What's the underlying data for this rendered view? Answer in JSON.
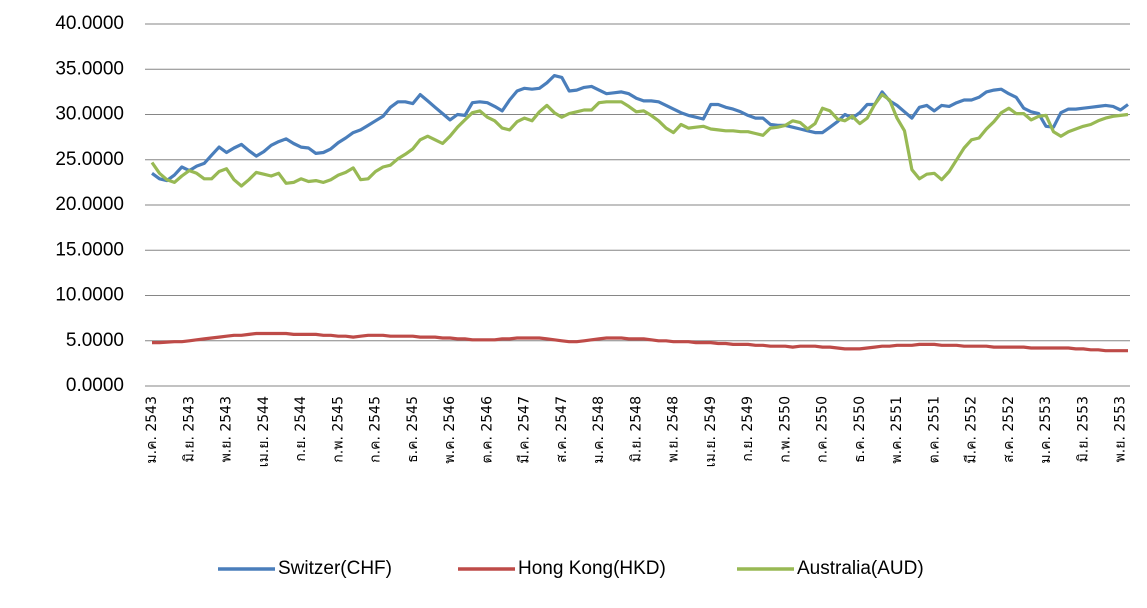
{
  "chart_data": {
    "type": "line",
    "categories": [
      "ม.ค. 2543",
      null,
      null,
      null,
      null,
      "มิ.ย. 2543",
      null,
      null,
      null,
      null,
      "พ.ย. 2543",
      null,
      null,
      null,
      null,
      "เม.ย. 2544",
      null,
      null,
      null,
      null,
      "ก.ย. 2544",
      null,
      null,
      null,
      null,
      "ก.พ. 2545",
      null,
      null,
      null,
      null,
      "ก.ค. 2545",
      null,
      null,
      null,
      null,
      "ธ.ค. 2545",
      null,
      null,
      null,
      null,
      "พ.ค. 2546",
      null,
      null,
      null,
      null,
      "ต.ค. 2546",
      null,
      null,
      null,
      null,
      "มี.ค. 2547",
      null,
      null,
      null,
      null,
      "ส.ค. 2547",
      null,
      null,
      null,
      null,
      "ม.ค. 2548",
      null,
      null,
      null,
      null,
      "มิ.ย. 2548",
      null,
      null,
      null,
      null,
      "พ.ย. 2548",
      null,
      null,
      null,
      null,
      "เม.ย. 2549",
      null,
      null,
      null,
      null,
      "ก.ย. 2549",
      null,
      null,
      null,
      null,
      "ก.พ. 2550",
      null,
      null,
      null,
      null,
      "ก.ค. 2550",
      null,
      null,
      null,
      null,
      "ธ.ค. 2550",
      null,
      null,
      null,
      null,
      "พ.ค. 2551",
      null,
      null,
      null,
      null,
      "ต.ค. 2551",
      null,
      null,
      null,
      null,
      "มี.ค. 2552",
      null,
      null,
      null,
      null,
      "ส.ค. 2552",
      null,
      null,
      null,
      null,
      "ม.ค. 2553",
      null,
      null,
      null,
      null,
      "มิ.ย. 2553",
      null,
      null,
      null,
      null,
      "พ.ย. 2553",
      null
    ],
    "series": [
      {
        "name": "Switzer(CHF)",
        "color": "#4a7ebb",
        "values": [
          23.5,
          22.9,
          22.7,
          23.3,
          24.2,
          23.8,
          24.3,
          24.6,
          25.5,
          26.4,
          25.8,
          26.3,
          26.7,
          26.0,
          25.4,
          25.9,
          26.6,
          27.0,
          27.3,
          26.8,
          26.4,
          26.3,
          25.7,
          25.8,
          26.2,
          26.9,
          27.4,
          28.0,
          28.3,
          28.8,
          29.3,
          29.8,
          30.8,
          31.4,
          31.4,
          31.2,
          32.2,
          31.5,
          30.8,
          30.1,
          29.4,
          30.0,
          29.9,
          31.3,
          31.4,
          31.3,
          30.9,
          30.4,
          31.6,
          32.6,
          32.9,
          32.8,
          32.9,
          33.5,
          34.3,
          34.1,
          32.6,
          32.7,
          33.0,
          33.1,
          32.7,
          32.3,
          32.4,
          32.5,
          32.3,
          31.8,
          31.5,
          31.5,
          31.4,
          31.0,
          30.6,
          30.2,
          29.9,
          29.7,
          29.5,
          31.1,
          31.1,
          30.8,
          30.6,
          30.3,
          29.9,
          29.6,
          29.6,
          28.9,
          28.8,
          28.8,
          28.6,
          28.4,
          28.2,
          28.0,
          28.0,
          28.6,
          29.2,
          30.0,
          29.6,
          30.2,
          31.1,
          31.1,
          32.5,
          31.5,
          31.0,
          30.3,
          29.6,
          30.8,
          31.0,
          30.4,
          31.0,
          30.9,
          31.3,
          31.6,
          31.6,
          31.9,
          32.5,
          32.7,
          32.8,
          32.3,
          31.9,
          30.7,
          30.3,
          30.1,
          28.7,
          28.6,
          30.2,
          30.6,
          30.6,
          30.7,
          30.8,
          30.9,
          31.0,
          30.9,
          30.5,
          31.1
        ]
      },
      {
        "name": "Hong Kong(HKD)",
        "color": "#be4b48",
        "values": [
          4.8,
          4.8,
          4.85,
          4.9,
          4.9,
          5.0,
          5.1,
          5.2,
          5.3,
          5.4,
          5.5,
          5.6,
          5.6,
          5.7,
          5.8,
          5.8,
          5.8,
          5.8,
          5.8,
          5.7,
          5.7,
          5.7,
          5.7,
          5.6,
          5.6,
          5.5,
          5.5,
          5.4,
          5.5,
          5.6,
          5.6,
          5.6,
          5.5,
          5.5,
          5.5,
          5.5,
          5.4,
          5.4,
          5.4,
          5.3,
          5.3,
          5.2,
          5.2,
          5.1,
          5.1,
          5.1,
          5.1,
          5.2,
          5.2,
          5.3,
          5.3,
          5.3,
          5.3,
          5.2,
          5.1,
          5.0,
          4.9,
          4.9,
          5.0,
          5.1,
          5.2,
          5.3,
          5.3,
          5.3,
          5.2,
          5.2,
          5.2,
          5.1,
          5.0,
          5.0,
          4.9,
          4.9,
          4.9,
          4.8,
          4.8,
          4.8,
          4.7,
          4.7,
          4.6,
          4.6,
          4.6,
          4.5,
          4.5,
          4.4,
          4.4,
          4.4,
          4.3,
          4.4,
          4.4,
          4.4,
          4.3,
          4.3,
          4.2,
          4.1,
          4.1,
          4.1,
          4.2,
          4.3,
          4.4,
          4.4,
          4.5,
          4.5,
          4.5,
          4.6,
          4.6,
          4.6,
          4.5,
          4.5,
          4.5,
          4.4,
          4.4,
          4.4,
          4.4,
          4.3,
          4.3,
          4.3,
          4.3,
          4.3,
          4.2,
          4.2,
          4.2,
          4.2,
          4.2,
          4.2,
          4.1,
          4.1,
          4.0,
          4.0,
          3.9,
          3.9,
          3.9,
          3.9
        ]
      },
      {
        "name": "Australia(AUD)",
        "color": "#98b954",
        "values": [
          24.7,
          23.5,
          22.8,
          22.5,
          23.2,
          23.8,
          23.5,
          22.9,
          22.9,
          23.7,
          24.0,
          22.8,
          22.1,
          22.8,
          23.6,
          23.4,
          23.2,
          23.5,
          22.4,
          22.5,
          22.9,
          22.6,
          22.7,
          22.5,
          22.8,
          23.3,
          23.6,
          24.1,
          22.8,
          22.9,
          23.7,
          24.2,
          24.4,
          25.1,
          25.6,
          26.2,
          27.2,
          27.6,
          27.2,
          26.8,
          27.6,
          28.6,
          29.4,
          30.2,
          30.4,
          29.7,
          29.3,
          28.5,
          28.3,
          29.2,
          29.6,
          29.3,
          30.3,
          31.0,
          30.2,
          29.7,
          30.1,
          30.3,
          30.5,
          30.5,
          31.3,
          31.4,
          31.4,
          31.4,
          30.9,
          30.3,
          30.4,
          29.9,
          29.3,
          28.5,
          28.0,
          28.9,
          28.5,
          28.6,
          28.7,
          28.4,
          28.3,
          28.2,
          28.2,
          28.1,
          28.1,
          27.9,
          27.7,
          28.5,
          28.6,
          28.8,
          29.3,
          29.1,
          28.4,
          29.0,
          30.7,
          30.4,
          29.5,
          29.3,
          29.8,
          29.0,
          29.6,
          31.1,
          32.2,
          31.6,
          29.6,
          28.2,
          23.9,
          22.9,
          23.4,
          23.5,
          22.8,
          23.7,
          25.0,
          26.3,
          27.2,
          27.4,
          28.4,
          29.2,
          30.2,
          30.7,
          30.1,
          30.1,
          29.4,
          29.8,
          29.9,
          28.1,
          27.6,
          28.1,
          28.4,
          28.7,
          28.9,
          29.3,
          29.6,
          29.8,
          29.9,
          30.0
        ]
      }
    ],
    "ylim": [
      0,
      40
    ],
    "yticks": [
      {
        "value": 0,
        "label": "0.0000"
      },
      {
        "value": 5,
        "label": "5.0000"
      },
      {
        "value": 10,
        "label": "10.0000"
      },
      {
        "value": 15,
        "label": "15.0000"
      },
      {
        "value": 20,
        "label": "20.0000"
      },
      {
        "value": 25,
        "label": "25.0000"
      },
      {
        "value": 30,
        "label": "30.0000"
      },
      {
        "value": 35,
        "label": "35.0000"
      },
      {
        "value": 40,
        "label": "40.0000"
      }
    ],
    "grid": true,
    "legend": "bottom"
  }
}
